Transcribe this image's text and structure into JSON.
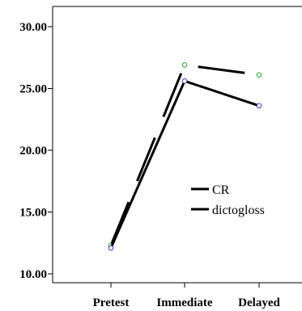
{
  "chart_data": {
    "type": "line",
    "title": "",
    "xlabel": "",
    "ylabel": "",
    "categories": [
      "Pretest",
      "Immediate",
      "Delayed"
    ],
    "ylim": [
      10,
      30
    ],
    "yticks": [
      "10.00",
      "15.00",
      "20.00",
      "25.00",
      "30.00"
    ],
    "grid": false,
    "legend_position": "center-right",
    "series": [
      {
        "name": "CR",
        "values": [
          12.3,
          26.9,
          26.1
        ],
        "color": "#000000",
        "marker_color": "#2e9e2e",
        "line_style": "dashed"
      },
      {
        "name": "dictogloss",
        "values": [
          12.1,
          25.6,
          23.6
        ],
        "color": "#000000",
        "marker_color": "#3b3bb8",
        "line_style": "solid"
      }
    ]
  }
}
